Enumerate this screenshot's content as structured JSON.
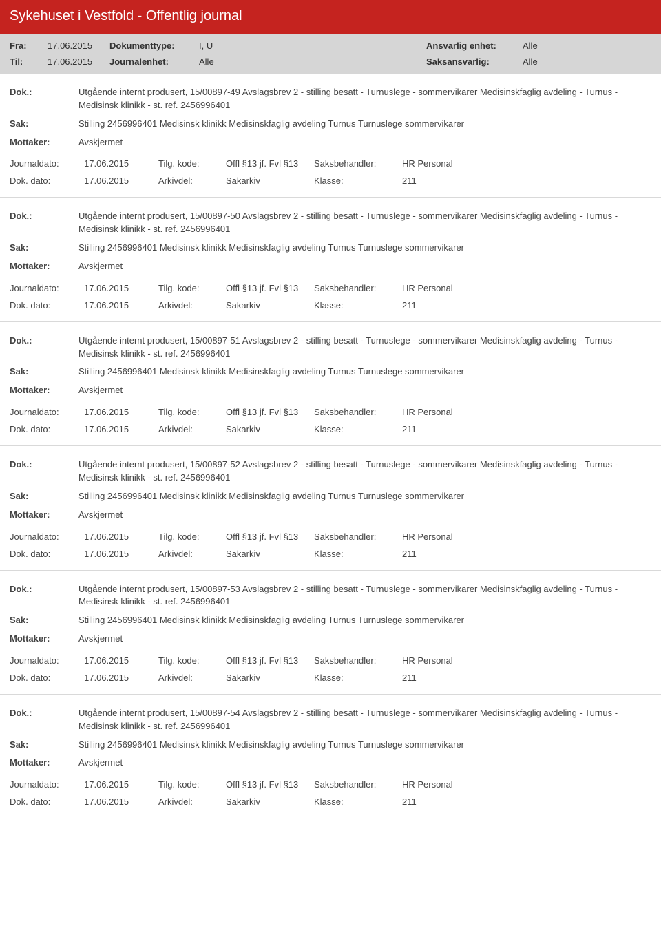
{
  "colors": {
    "headerRed": "#c5231f",
    "headerGrey": "#d6d6d6",
    "divider": "#d9d9d9",
    "text": "#444444",
    "white": "#ffffff"
  },
  "title": "Sykehuset i Vestfold - Offentlig journal",
  "filter": {
    "fraLabel": "Fra:",
    "fraValue": "17.06.2015",
    "tilLabel": "Til:",
    "tilValue": "17.06.2015",
    "doktypeLabel": "Dokumenttype:",
    "doktypeValue": "I, U",
    "journalenhetLabel": "Journalenhet:",
    "journalenhetValue": "Alle",
    "ansvarligLabel": "Ansvarlig enhet:",
    "ansvarligValue": "Alle",
    "saksansvarligLabel": "Saksansvarlig:",
    "saksansvarligValue": "Alle"
  },
  "labels": {
    "dok": "Dok.:",
    "sak": "Sak:",
    "mottaker": "Mottaker:",
    "journaldato": "Journaldato:",
    "tilgKode": "Tilg. kode:",
    "saksbehandler": "Saksbehandler:",
    "dokDato": "Dok. dato:",
    "arkivdel": "Arkivdel:",
    "klasse": "Klasse:"
  },
  "common": {
    "sak": "Stilling 2456996401 Medisinsk klinikk Medisinskfaglig avdeling Turnus Turnuslege sommervikarer",
    "mottaker": "Avskjermet",
    "journaldato": "17.06.2015",
    "tilgKode": "Offl §13 jf. Fvl §13",
    "saksbehandler": "HR Personal",
    "dokDato": "17.06.2015",
    "arkivdel": "Sakarkiv",
    "klasse": "211"
  },
  "entries": [
    {
      "dok": "Utgående internt produsert, 15/00897-49 Avslagsbrev 2 - stilling besatt - Turnuslege - sommervikarer Medisinskfaglig avdeling - Turnus - Medisinsk klinikk - st. ref. 2456996401"
    },
    {
      "dok": "Utgående internt produsert, 15/00897-50 Avslagsbrev 2 - stilling besatt - Turnuslege - sommervikarer Medisinskfaglig avdeling - Turnus - Medisinsk klinikk - st. ref. 2456996401"
    },
    {
      "dok": "Utgående internt produsert, 15/00897-51 Avslagsbrev 2 - stilling besatt - Turnuslege - sommervikarer Medisinskfaglig avdeling - Turnus - Medisinsk klinikk - st. ref. 2456996401"
    },
    {
      "dok": "Utgående internt produsert, 15/00897-52 Avslagsbrev 2 - stilling besatt - Turnuslege - sommervikarer Medisinskfaglig avdeling - Turnus - Medisinsk klinikk - st. ref. 2456996401"
    },
    {
      "dok": "Utgående internt produsert, 15/00897-53 Avslagsbrev 2 - stilling besatt - Turnuslege - sommervikarer Medisinskfaglig avdeling - Turnus - Medisinsk klinikk - st. ref. 2456996401"
    },
    {
      "dok": "Utgående internt produsert, 15/00897-54 Avslagsbrev 2 - stilling besatt - Turnuslege - sommervikarer Medisinskfaglig avdeling - Turnus - Medisinsk klinikk - st. ref. 2456996401"
    }
  ]
}
